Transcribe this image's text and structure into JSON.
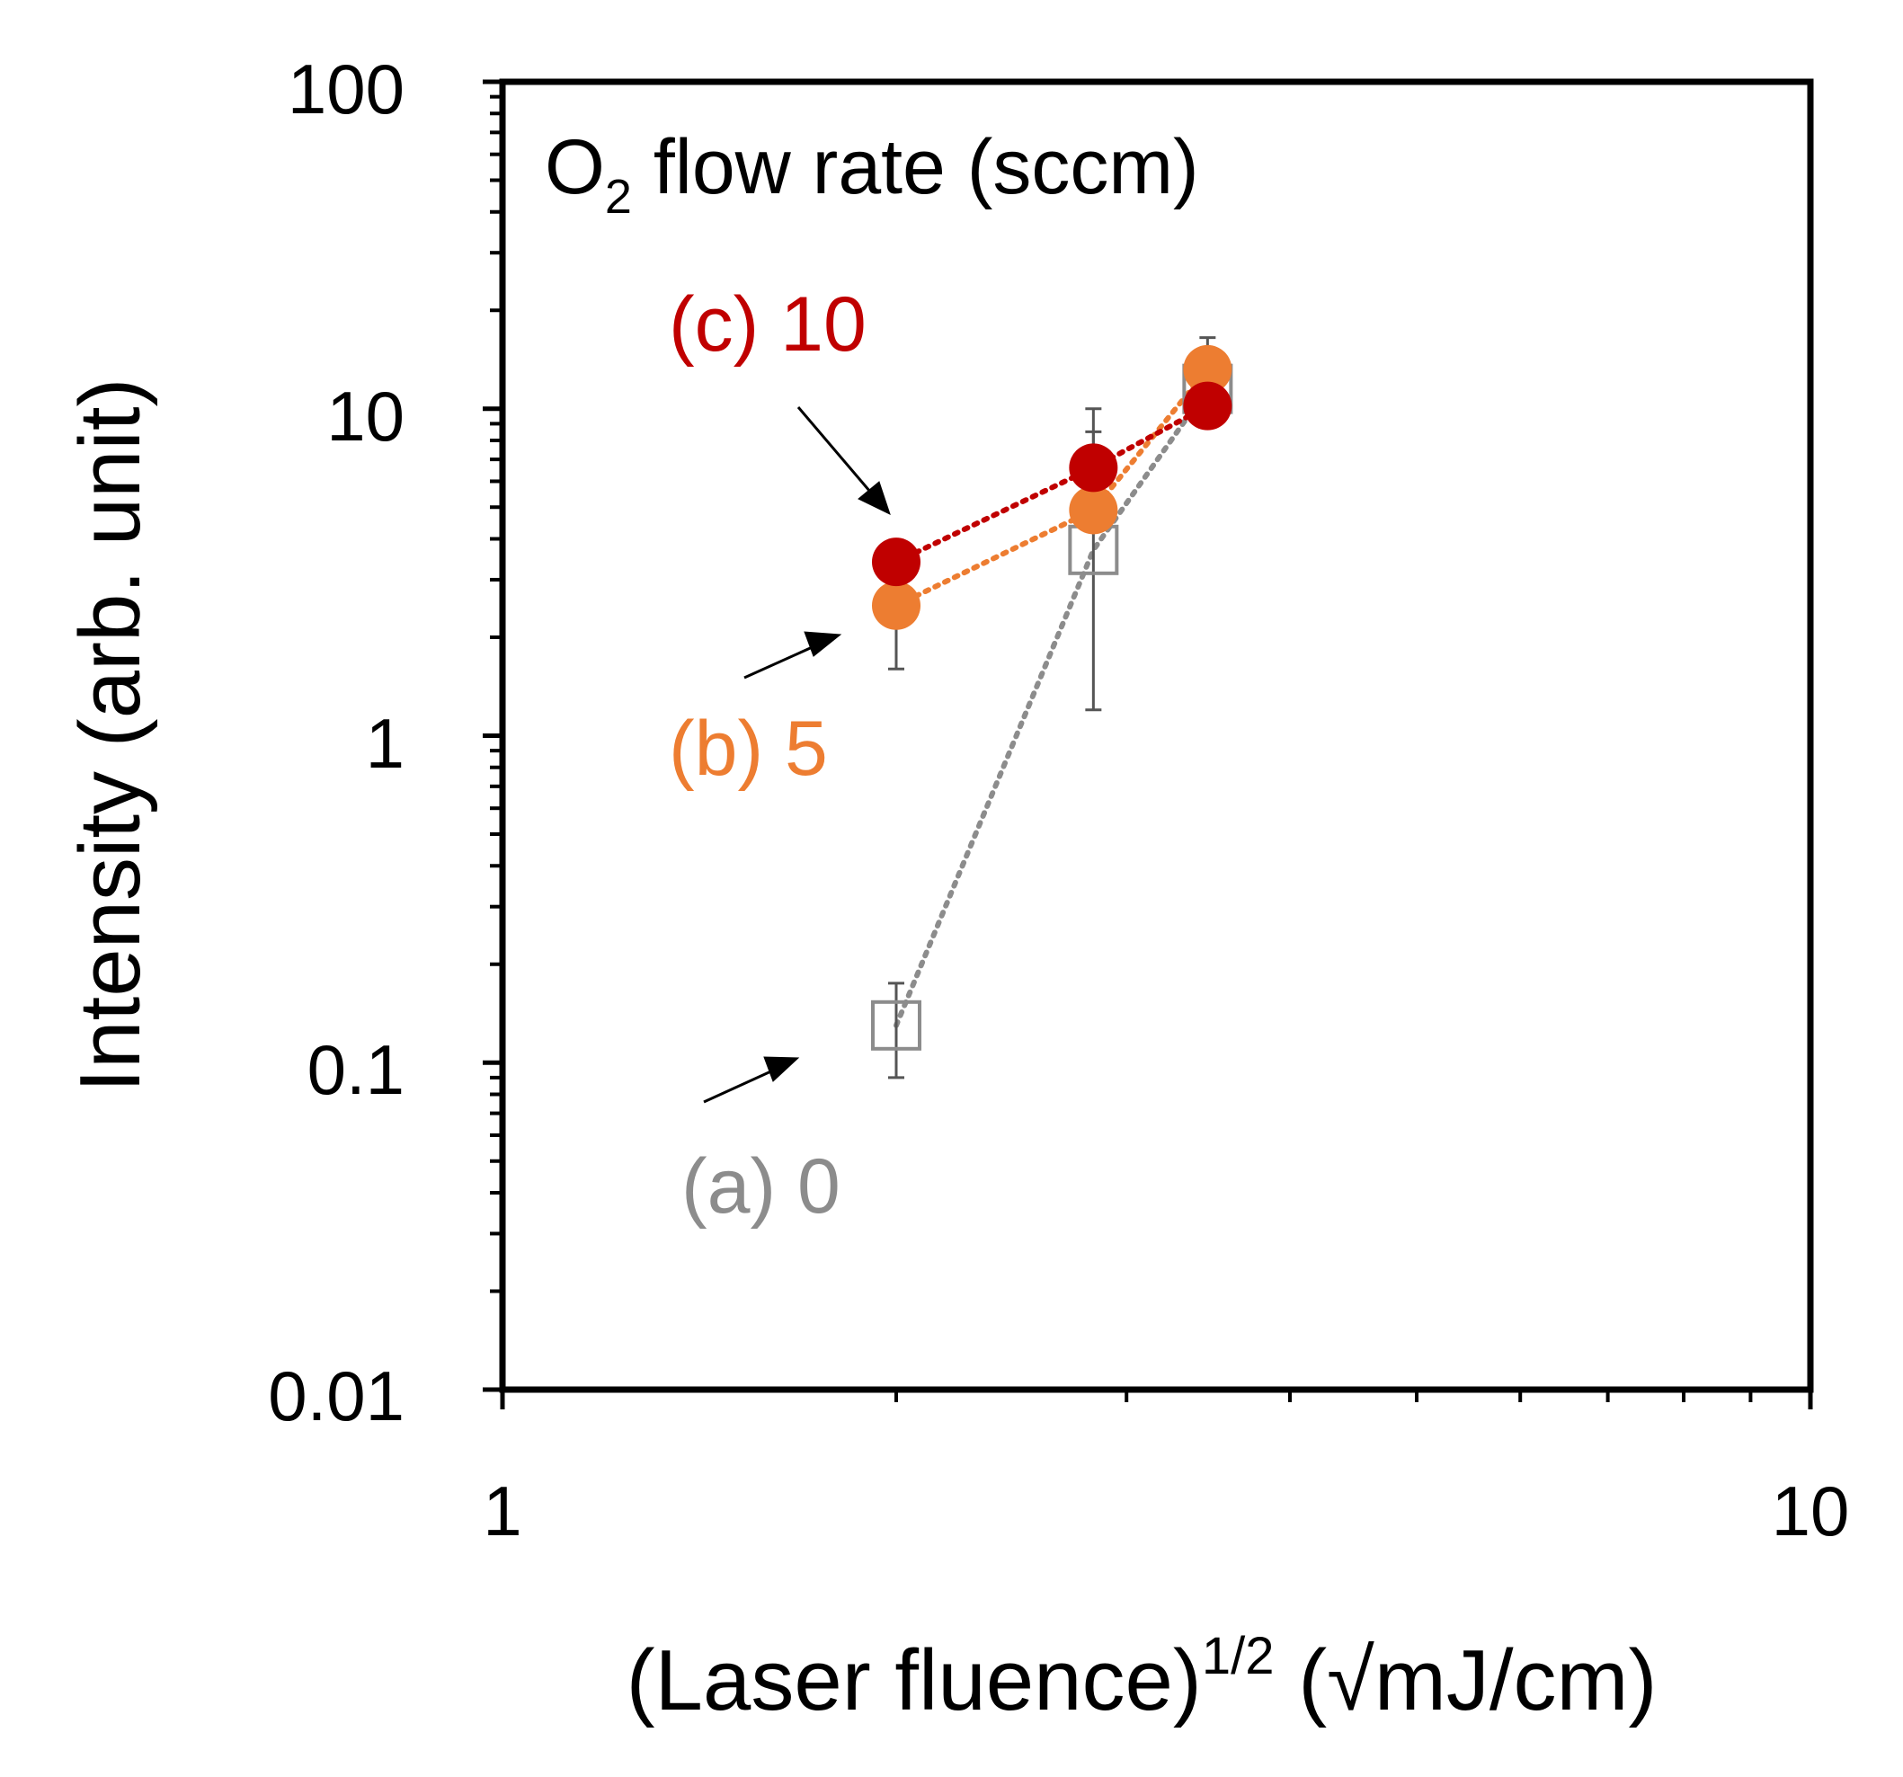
{
  "chart_data": {
    "type": "scatter",
    "title": "",
    "xlabel": {
      "main": "(Laser fluence)",
      "superscript": "1/2",
      "units": " (√mJ/cm)"
    },
    "ylabel": "Intensity (arb. unit)",
    "x_scale": "log",
    "y_scale": "log",
    "xlim": [
      1,
      10
    ],
    "ylim": [
      0.01,
      100
    ],
    "x_tick_values": [
      1,
      10
    ],
    "x_tick_labels": [
      "1",
      "10"
    ],
    "y_tick_values": [
      0.01,
      0.1,
      1,
      10,
      100
    ],
    "y_tick_labels": [
      "0.01",
      "0.1",
      "1",
      "10",
      "100"
    ],
    "grid": false,
    "annotation": {
      "prefix": "O",
      "subscript": "2",
      "suffix": " flow rate (sccm)"
    },
    "series": [
      {
        "name": "(a) 0",
        "label": "(a) 0",
        "color": "#8c8c8c",
        "marker": "open-square",
        "x": [
          2.0,
          2.83,
          3.46
        ],
        "y": [
          0.13,
          3.7,
          11.5
        ],
        "err_low": [
          0.09,
          1.2,
          11.5
        ],
        "err_high": [
          0.175,
          8.5,
          11.5
        ]
      },
      {
        "name": "(b) 5",
        "label": "(b) 5",
        "color": "#ed7d31",
        "marker": "filled-circle",
        "x": [
          2.0,
          2.83,
          3.46
        ],
        "y": [
          2.5,
          4.9,
          13.2
        ],
        "err_low": [
          1.6,
          4.9,
          13.2
        ],
        "err_high": [
          2.5,
          4.9,
          16.5
        ]
      },
      {
        "name": "(c) 10",
        "label": "(c) 10",
        "color": "#c00000",
        "marker": "filled-circle",
        "x": [
          2.0,
          2.83,
          3.46
        ],
        "y": [
          3.4,
          6.6,
          10.2
        ],
        "err_low": [
          3.4,
          6.6,
          10.2
        ],
        "err_high": [
          3.4,
          10.0,
          10.2
        ]
      }
    ]
  }
}
